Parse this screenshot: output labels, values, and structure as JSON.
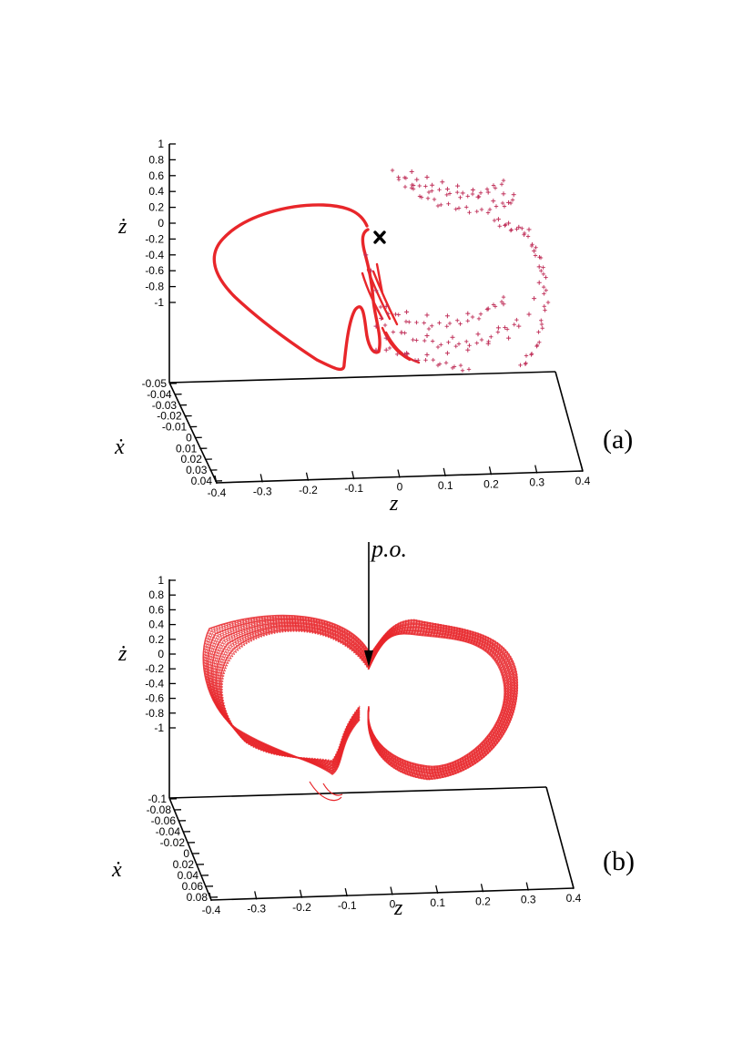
{
  "chart_data": [
    {
      "type": "scatter",
      "panel_label": "(a)",
      "projection": "3d",
      "xlabel": "z",
      "ylabel": "ẋ",
      "zlabel": "ż",
      "x_ticks": [
        "-0.4",
        "-0.3",
        "-0.2",
        "-0.1",
        "0",
        "0.1",
        "0.2",
        "0.3",
        "0.4"
      ],
      "y_ticks": [
        "-0.05",
        "-0.04",
        "-0.03",
        "-0.02",
        "-0.01",
        "0",
        "0.01",
        "0.02",
        "0.03",
        "0.04"
      ],
      "z_ticks": [
        "1",
        "0.8",
        "0.6",
        "0.4",
        "0.2",
        "0",
        "-0.2",
        "-0.4",
        "-0.6",
        "-0.8",
        "-1"
      ],
      "xlim": [
        -0.4,
        0.4
      ],
      "ylim": [
        -0.05,
        0.04
      ],
      "zlim": [
        -1,
        1
      ],
      "grid": false,
      "series": [
        {
          "style": "solid-line",
          "color": "#e8262a",
          "points": [
            [
              -0.03,
              0.0,
              0.05
            ],
            [
              -0.05,
              0.0,
              0.15
            ],
            [
              -0.08,
              0.0,
              0.21
            ],
            [
              -0.13,
              0.0,
              0.23
            ],
            [
              -0.19,
              0.0,
              0.2
            ],
            [
              -0.25,
              0.0,
              0.08
            ],
            [
              -0.29,
              0.0,
              -0.1
            ],
            [
              -0.31,
              0.0,
              -0.33
            ],
            [
              -0.29,
              0.0,
              -0.52
            ],
            [
              -0.24,
              0.0,
              -0.8
            ],
            [
              -0.18,
              0.0,
              -1.05
            ],
            [
              -0.12,
              0.0,
              -1.25
            ],
            [
              -0.08,
              0.0,
              -1.4
            ],
            [
              -0.07,
              0.0,
              -1.3
            ],
            [
              -0.06,
              0.0,
              -1.0
            ],
            [
              -0.045,
              0.0,
              -1.05
            ],
            [
              -0.035,
              0.0,
              -1.35
            ],
            [
              -0.025,
              0.0,
              -1.5
            ],
            [
              -0.02,
              0.0,
              -1.3
            ]
          ]
        },
        {
          "style": "crosses",
          "color": "#c0305a",
          "points": [
            [
              0.07,
              0.0,
              0.65
            ],
            [
              0.1,
              0.0,
              0.58
            ],
            [
              0.13,
              0.0,
              0.52
            ],
            [
              0.16,
              0.0,
              0.47
            ],
            [
              0.19,
              0.0,
              0.42
            ],
            [
              0.22,
              0.0,
              0.39
            ],
            [
              0.25,
              0.0,
              0.37
            ],
            [
              0.27,
              0.0,
              0.36
            ],
            [
              0.08,
              0.0,
              0.55
            ],
            [
              0.11,
              0.0,
              0.48
            ],
            [
              0.14,
              0.0,
              0.43
            ],
            [
              0.17,
              0.0,
              0.38
            ],
            [
              0.2,
              0.0,
              0.33
            ],
            [
              0.23,
              0.0,
              0.28
            ],
            [
              0.26,
              0.0,
              0.26
            ],
            [
              0.24,
              0.0,
              0.05
            ],
            [
              0.26,
              0.0,
              0.0
            ],
            [
              0.28,
              0.0,
              -0.05
            ],
            [
              0.3,
              0.0,
              -0.08
            ],
            [
              0.31,
              0.0,
              -0.35
            ],
            [
              0.32,
              0.0,
              -0.55
            ],
            [
              0.32,
              0.0,
              -0.75
            ],
            [
              0.31,
              0.0,
              -0.95
            ],
            [
              0.3,
              0.0,
              -1.15
            ],
            [
              0.28,
              0.0,
              -1.3
            ],
            [
              0.26,
              0.0,
              -1.45
            ],
            [
              0.02,
              0.0,
              -1.05
            ],
            [
              0.06,
              0.0,
              -1.12
            ],
            [
              0.1,
              0.0,
              -1.16
            ],
            [
              0.14,
              0.0,
              -1.17
            ],
            [
              0.18,
              0.0,
              -1.14
            ],
            [
              0.22,
              0.0,
              -1.08
            ],
            [
              0.25,
              0.0,
              -1.02
            ],
            [
              0.0,
              0.0,
              -1.3
            ],
            [
              0.05,
              0.0,
              -1.38
            ],
            [
              0.1,
              0.0,
              -1.42
            ],
            [
              0.15,
              0.0,
              -1.44
            ],
            [
              0.2,
              0.0,
              -1.4
            ],
            [
              0.24,
              0.0,
              -1.32
            ],
            [
              0.02,
              0.0,
              -1.6
            ],
            [
              0.06,
              0.0,
              -1.64
            ],
            [
              0.1,
              0.0,
              -1.66
            ],
            [
              0.14,
              0.0,
              -1.64
            ],
            [
              0.18,
              0.0,
              -1.6
            ],
            [
              0.22,
              0.0,
              -1.52
            ],
            [
              -0.02,
              0.0,
              -0.4
            ],
            [
              -0.01,
              0.0,
              -0.6
            ],
            [
              0.0,
              0.0,
              -0.85
            ],
            [
              0.01,
              0.0,
              -1.2
            ],
            [
              0.02,
              0.0,
              -1.45
            ],
            [
              0.0,
              0.0,
              -1.6
            ]
          ]
        },
        {
          "style": "marker-x",
          "color": "#000000",
          "points": [
            [
              0.0,
              0.0,
              -0.2
            ]
          ]
        }
      ]
    },
    {
      "type": "scatter",
      "panel_label": "(b)",
      "projection": "3d",
      "xlabel": "z",
      "ylabel": "ẋ",
      "zlabel": "ż",
      "x_ticks": [
        "-0.4",
        "-0.3",
        "-0.2",
        "-0.1",
        "0",
        "0.1",
        "0.2",
        "0.3",
        "0.4"
      ],
      "y_ticks": [
        "-0.1",
        "-0.08",
        "-0.06",
        "-0.04",
        "-0.02",
        "0",
        "0.02",
        "0.04",
        "0.06",
        "0.08"
      ],
      "z_ticks": [
        "1",
        "0.8",
        "0.6",
        "0.4",
        "0.2",
        "0",
        "-0.2",
        "-0.4",
        "-0.6",
        "-0.8",
        "-1"
      ],
      "xlim": [
        -0.4,
        0.4
      ],
      "ylim": [
        -0.1,
        0.08
      ],
      "zlim": [
        -1,
        1
      ],
      "grid": false,
      "annotations": [
        {
          "text": "p.o.",
          "points_to": [
            -0.05,
            0.0,
            -0.1
          ]
        }
      ],
      "series": [
        {
          "style": "dense-dotted-trajectory",
          "color": "#e8262a",
          "description_loops": 28
        }
      ]
    }
  ]
}
